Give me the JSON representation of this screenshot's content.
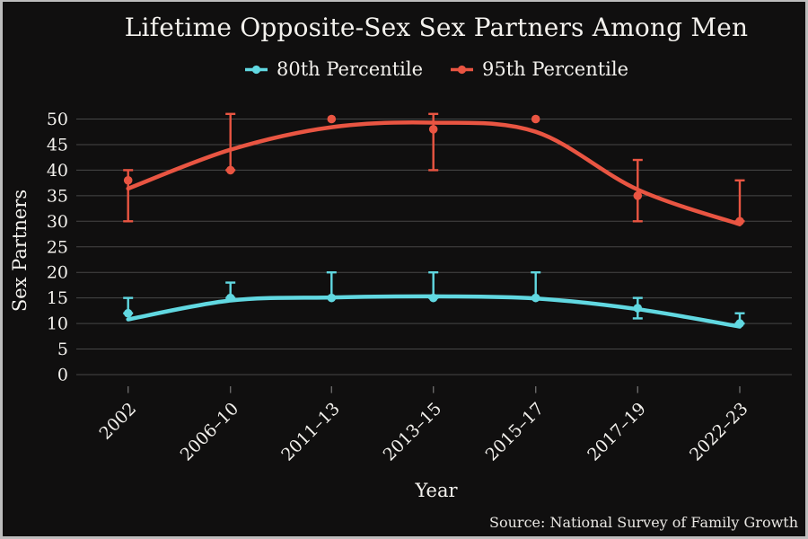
{
  "title": "Lifetime Opposite-Sex Sex Partners Among Men",
  "chart_data": {
    "type": "line",
    "title": "Lifetime Opposite-Sex Sex Partners Among Men",
    "xlabel": "Year",
    "ylabel": "Sex Partners",
    "source": "Source: National Survey of Family Growth",
    "categories": [
      "2002",
      "2006–10",
      "2011–13",
      "2013–15",
      "2015–17",
      "2017–19",
      "2022–23"
    ],
    "yticks": [
      0,
      5,
      10,
      15,
      20,
      25,
      30,
      35,
      40,
      45,
      50
    ],
    "ylim": [
      0,
      50
    ],
    "grid": true,
    "legend_position": "top",
    "background_color": "#100f0f",
    "grid_color": "#474747",
    "text_color": "#f3f1ed",
    "series": [
      {
        "name": "80th Percentile",
        "color": "#61d8e1",
        "values": [
          12,
          15,
          15,
          15,
          15,
          13,
          10
        ],
        "ci_low": [
          12,
          15,
          15,
          15,
          15,
          11,
          10
        ],
        "ci_high": [
          15,
          18,
          20,
          20,
          20,
          15,
          12
        ],
        "trend": [
          10.8,
          14.5,
          15.1,
          15.3,
          14.9,
          12.8,
          9.4
        ]
      },
      {
        "name": "95th Percentile",
        "color": "#e95542",
        "values": [
          38,
          40,
          50,
          48,
          50,
          35,
          30
        ],
        "ci_low": [
          30,
          40,
          50,
          40,
          50,
          30,
          30
        ],
        "ci_high": [
          40,
          51,
          50,
          51,
          50,
          42,
          38
        ],
        "trend": [
          36.4,
          44.0,
          48.4,
          49.3,
          47.5,
          36.2,
          29.4
        ]
      }
    ]
  }
}
